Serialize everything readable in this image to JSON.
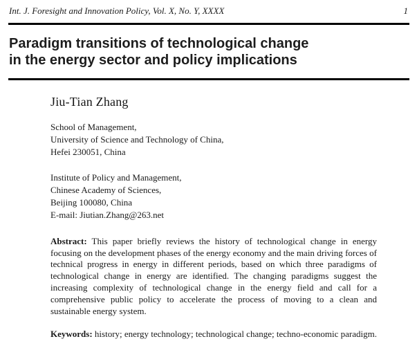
{
  "header": {
    "journal": "Int. J. Foresight and Innovation Policy, Vol. X, No. Y, XXXX",
    "page_number": "1"
  },
  "title": {
    "line1": "Paradigm transitions of technological change",
    "line2": "in the energy sector and policy implications"
  },
  "author": {
    "name": "Jiu-Tian Zhang",
    "affiliation1": [
      "School of Management,",
      "University of Science and Technology of China,",
      "Hefei 230051, China"
    ],
    "affiliation2": [
      "Institute of Policy and Management,",
      "Chinese Academy of Sciences,",
      "Beijing 100080, China",
      "E-mail: Jiutian.Zhang@263.net"
    ]
  },
  "abstract": {
    "label": "Abstract:",
    "text": "This paper briefly reviews the history of technological change in energy focusing on the development phases of the energy economy and the main driving forces of technical progress in energy in different periods, based on which three paradigms of technological change in energy are identified. The changing paradigms suggest the increasing complexity of technological change in the energy field and call for a comprehensive public policy to accelerate the process of moving to a clean and sustainable energy system."
  },
  "keywords": {
    "label": "Keywords:",
    "text": "history; energy technology; technological change;",
    "text_last": "techno-economic paradigm."
  }
}
